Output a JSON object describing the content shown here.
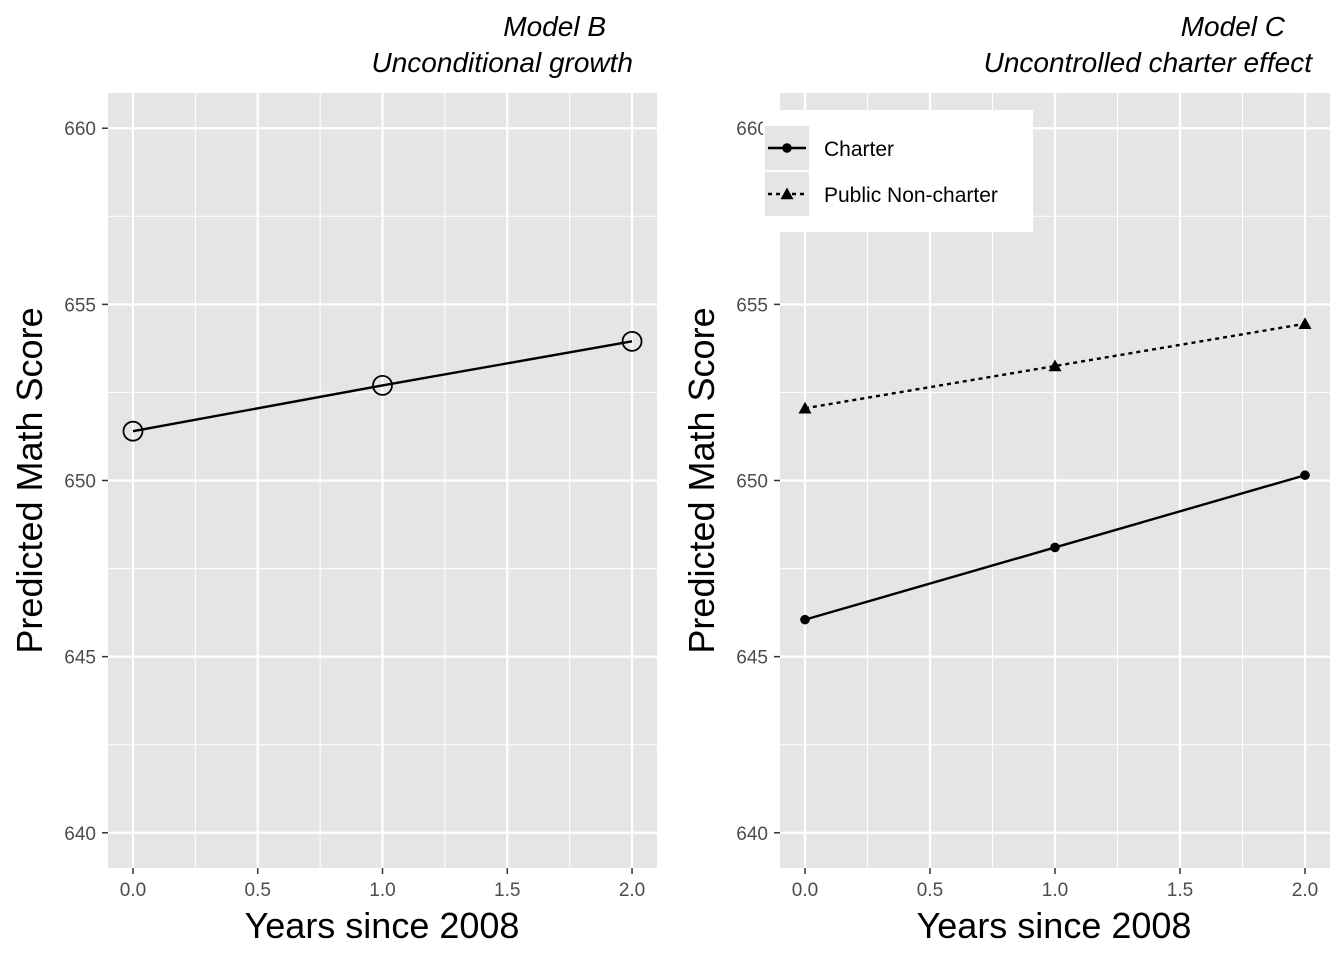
{
  "chart_data": [
    {
      "type": "line",
      "title": "Model B",
      "subtitle": "Unconditional growth",
      "xlabel": "Years since 2008",
      "ylabel": "Predicted Math Score",
      "xlim": [
        -0.1,
        2.1
      ],
      "ylim": [
        639,
        661
      ],
      "x_ticks": [
        0,
        0.5,
        1,
        1.5,
        2
      ],
      "x_tick_labels": [
        "0.0",
        "0.5",
        "1.0",
        "1.5",
        "2.0"
      ],
      "y_ticks": [
        640,
        645,
        650,
        655,
        660
      ],
      "y_tick_labels": [
        "640",
        "645",
        "650",
        "655",
        "660"
      ],
      "grid": true,
      "legend": null,
      "series": [
        {
          "marker": "open-circle",
          "linetype": "solid",
          "color": "#000000",
          "x": [
            0,
            1,
            2
          ],
          "y": [
            651.4,
            652.7,
            653.95
          ]
        }
      ]
    },
    {
      "type": "line",
      "title": "Model C",
      "subtitle": "Uncontrolled charter effect",
      "xlabel": "Years since 2008",
      "ylabel": "Predicted Math Score",
      "xlim": [
        -0.1,
        2.1
      ],
      "ylim": [
        639,
        661
      ],
      "x_ticks": [
        0,
        0.5,
        1,
        1.5,
        2
      ],
      "x_tick_labels": [
        "0.0",
        "0.5",
        "1.0",
        "1.5",
        "2.0"
      ],
      "y_ticks": [
        640,
        645,
        650,
        655,
        660
      ],
      "y_tick_labels": [
        "640",
        "645",
        "650",
        "655",
        "660"
      ],
      "grid": true,
      "legend": "top-left",
      "series": [
        {
          "name": "Charter",
          "marker": "filled-circle",
          "linetype": "solid",
          "color": "#000000",
          "x": [
            0,
            1,
            2
          ],
          "y": [
            646.05,
            648.1,
            650.15
          ]
        },
        {
          "name": "Public Non-charter",
          "marker": "filled-triangle",
          "linetype": "dotted",
          "color": "#000000",
          "x": [
            0,
            1,
            2
          ],
          "y": [
            652.05,
            653.25,
            654.45
          ]
        }
      ]
    }
  ],
  "colors": {
    "panel_background": "#e5e5e5",
    "grid": "#ffffff",
    "line": "#000000"
  }
}
